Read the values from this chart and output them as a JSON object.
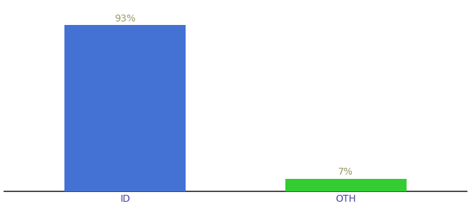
{
  "categories": [
    "ID",
    "OTH"
  ],
  "values": [
    93,
    7
  ],
  "bar_colors": [
    "#4472d4",
    "#33cc33"
  ],
  "label_texts": [
    "93%",
    "7%"
  ],
  "background_color": "#ffffff",
  "ylim": [
    0,
    105
  ],
  "bar_width": 0.55,
  "figsize": [
    6.8,
    3.0
  ],
  "dpi": 100,
  "label_fontsize": 10,
  "tick_fontsize": 10,
  "label_color": "#999966",
  "tick_color": "#4444aa"
}
